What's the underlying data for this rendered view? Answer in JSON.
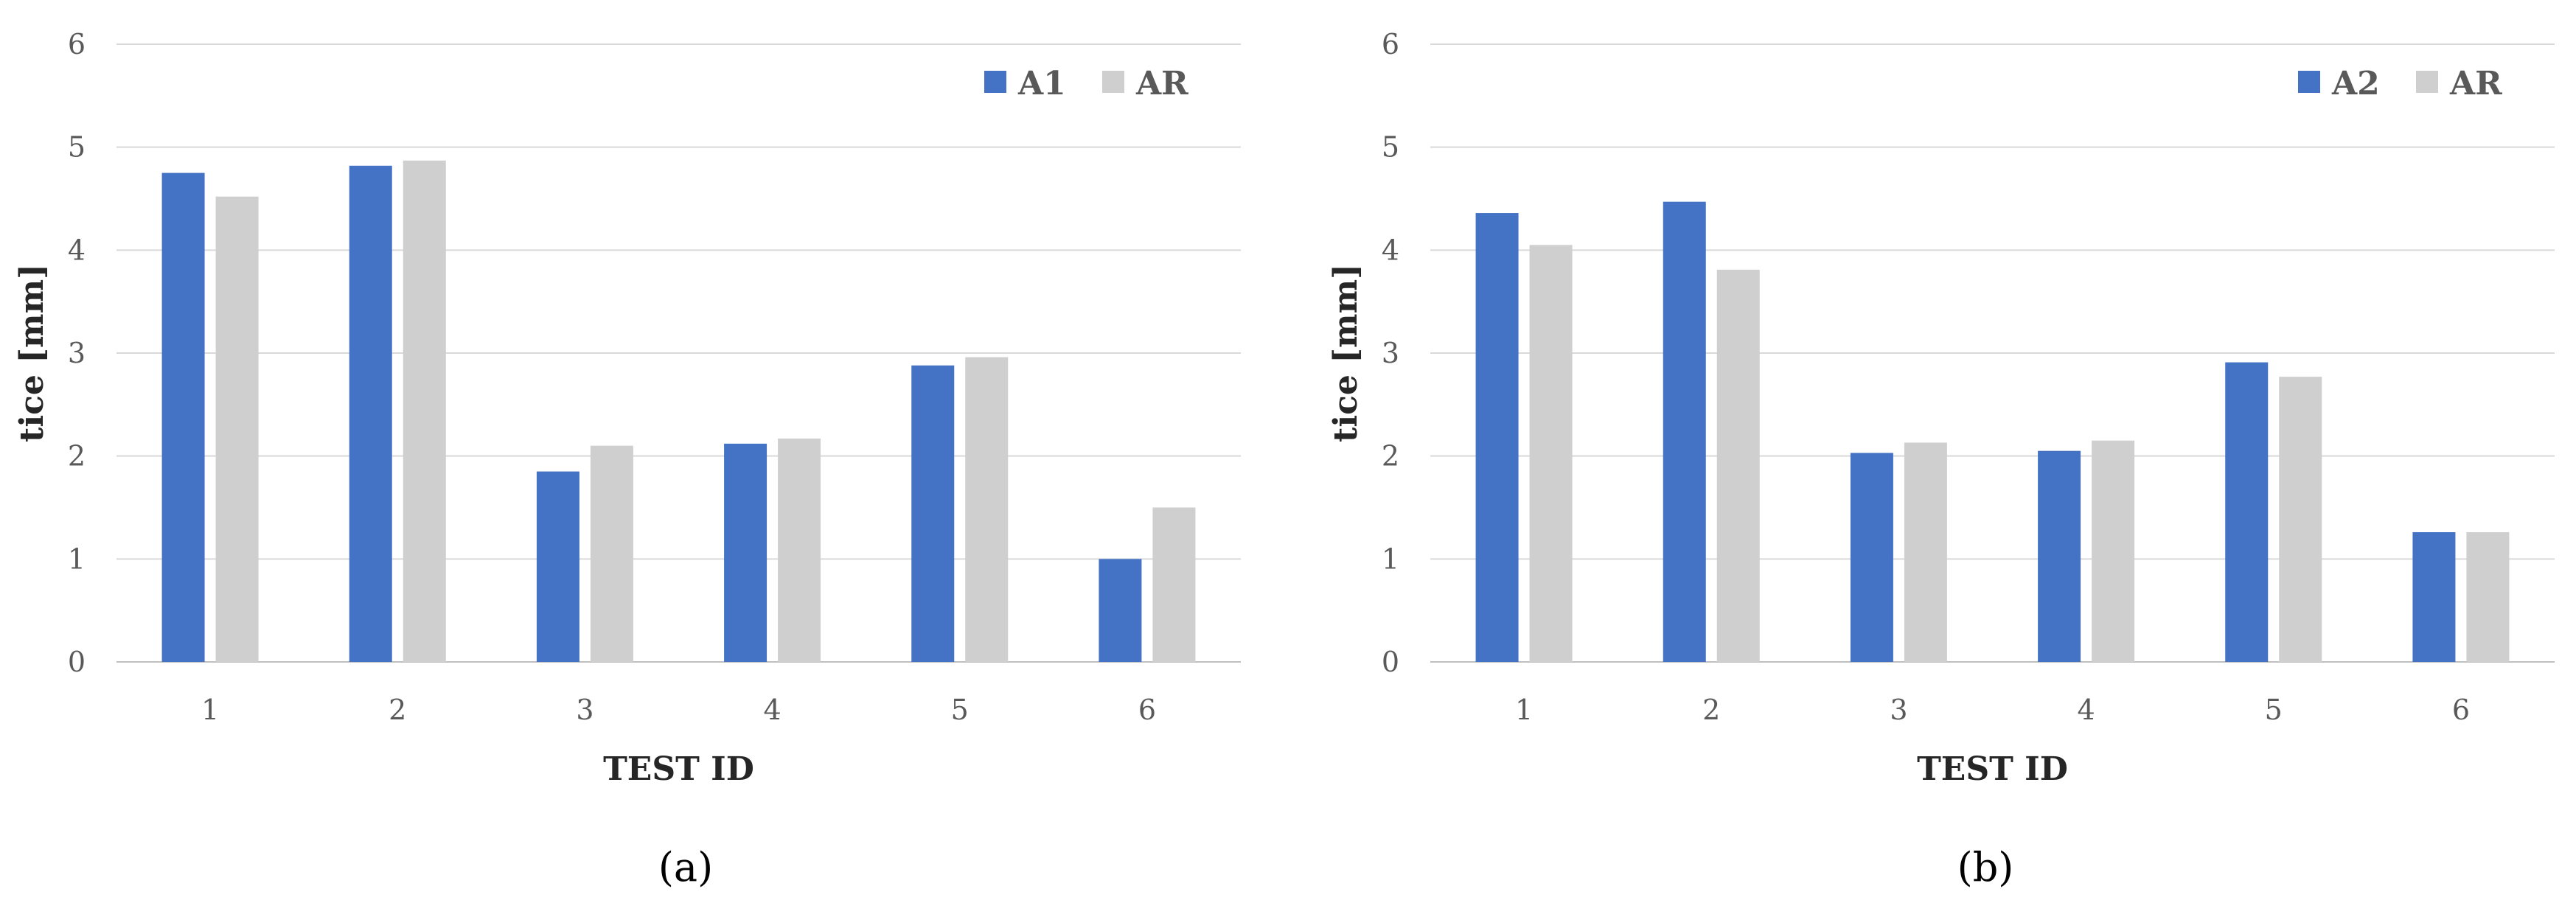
{
  "chart_data": [
    {
      "type": "bar",
      "panel_label": "(a)",
      "categories": [
        "1",
        "2",
        "3",
        "4",
        "5",
        "6"
      ],
      "series": [
        {
          "name": "A1",
          "color": "#4472C4",
          "values": [
            4.75,
            4.82,
            1.85,
            2.12,
            2.88,
            1.0
          ]
        },
        {
          "name": "AR",
          "color": "#D0CFCF",
          "values": [
            4.52,
            4.87,
            2.1,
            2.17,
            2.96,
            1.5
          ]
        }
      ],
      "xlabel": "TEST ID",
      "ylabel": "tice [mm]",
      "ylim": [
        0,
        6
      ],
      "yticks": [
        0,
        1,
        2,
        3,
        4,
        5,
        6
      ],
      "grid": true,
      "legend": "top-right"
    },
    {
      "type": "bar",
      "panel_label": "(b)",
      "categories": [
        "1",
        "2",
        "3",
        "4",
        "5",
        "6"
      ],
      "series": [
        {
          "name": "A2",
          "color": "#4472C4",
          "values": [
            4.36,
            4.47,
            2.03,
            2.05,
            2.91,
            1.26
          ]
        },
        {
          "name": "AR",
          "color": "#D0CFCF",
          "values": [
            4.05,
            3.81,
            2.13,
            2.15,
            2.77,
            1.26
          ]
        }
      ],
      "xlabel": "TEST ID",
      "ylabel": "tice [mm]",
      "ylim": [
        0,
        6
      ],
      "yticks": [
        0,
        1,
        2,
        3,
        4,
        5,
        6
      ],
      "grid": true,
      "legend": "top-right"
    }
  ]
}
